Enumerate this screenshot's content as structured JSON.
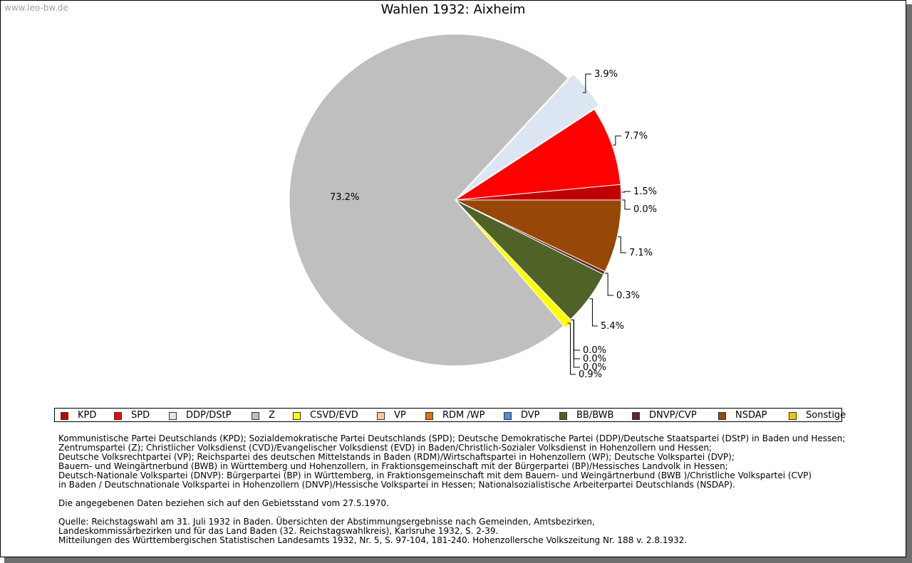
{
  "watermark": "www.leo-bw.de",
  "chart_data": {
    "type": "pie",
    "title": "Wahlen 1932: Aixheim",
    "slices": [
      {
        "key": "KPD",
        "value": 1.5,
        "label": "1.5%",
        "color": "#c00000"
      },
      {
        "key": "SPD",
        "value": 7.7,
        "label": "7.7%",
        "color": "#ff0000"
      },
      {
        "key": "DDP/DStP",
        "value": 3.9,
        "label": "3.9%",
        "color": "#dce6f2"
      },
      {
        "key": "Z",
        "value": 73.2,
        "label": "73.2%",
        "color": "#bfbfbf"
      },
      {
        "key": "CSVD/EVD",
        "value": 0.9,
        "label": "0.9%",
        "color": "#ffff00"
      },
      {
        "key": "VP",
        "value": 0.0,
        "label": "0.0%",
        "color": "#fac8a8"
      },
      {
        "key": "RDM /WP",
        "value": 0.0,
        "label": "0.0%",
        "color": "#e46c0a"
      },
      {
        "key": "DVP",
        "value": 0.0,
        "label": "0.0%",
        "color": "#4a90d9"
      },
      {
        "key": "BB/BWB",
        "value": 5.4,
        "label": "5.4%",
        "color": "#4f6228"
      },
      {
        "key": "DNVP/CVP",
        "value": 0.3,
        "label": "0.3%",
        "color": "#632523"
      },
      {
        "key": "NSDAP",
        "value": 7.1,
        "label": "7.1%",
        "color": "#974806"
      },
      {
        "key": "Sonstige",
        "value": 0.0,
        "label": "0.0%",
        "color": "#ffc000"
      }
    ],
    "legend_position": "bottom"
  },
  "notes": {
    "parties": [
      "Kommunistische Partei Deutschlands (KPD); Sozialdemokratische Partei Deutschlands (SPD); Deutsche Demokratische Partei (DDP)/Deutsche Staatspartei (DStP) in Baden und Hessen;",
      "Zentrumspartei (Z); Christlicher Volksdienst (CVD)/Evangelischer Volksdienst (EVD) in Baden/Christlich-Sozialer Volksdienst in Hohenzollern und Hessen;",
      "Deutsche Volksrechtpartei (VP); Reichspartei des deutschen Mittelstands in Baden (RDM)/Wirtschaftspartei in Hohenzollern (WP); Deutsche Volkspartei (DVP);",
      "Bauern- und Weingärtnerbund (BWB) in Württemberg und Hohenzollern, in Fraktionsgemeinschaft mit der Bürgerpartei (BP)/Hessisches Landvolk in Hessen;",
      "Deutsch-Nationale Volkspartei (DNVP): Bürgerpartei (BP) in Württemberg, in Fraktionsgemeinschaft mit dem Bauern- und Weingärtnerbund (BWB )/Christliche Volkspartei (CVP)",
      "in Baden / Deutschnationale Volkspartei in Hohenzollern (DNVP)/Hessische Volkspartei in Hessen; Nationalsozialistische Arbeiterpartei Deutschlands (NSDAP)."
    ],
    "territory": "Die angegebenen Daten beziehen sich auf den Gebietsstand vom 27.5.1970.",
    "source": [
      "Quelle: Reichstagswahl am 31. Juli 1932 in Baden. Übersichten der Abstimmungsergebnisse nach Gemeinden, Amtsbezirken,",
      "Landeskommissärbezirken und für das Land Baden (32. Reichstagswahlkreis), Karlsruhe 1932, S. 2-39.",
      "Mitteilungen des Württembergischen Statistischen Landesamts 1932, Nr. 5, S. 97-104, 181-240. Hohenzollersche Volkszeitung Nr. 188 v. 2.8.1932."
    ]
  }
}
